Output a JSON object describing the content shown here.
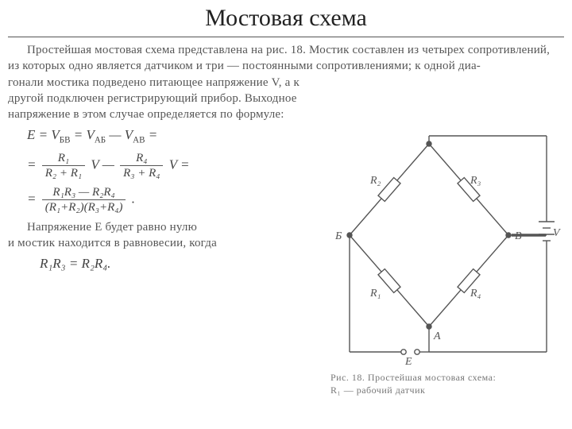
{
  "title": "Мостовая схема",
  "para1_full": "Простейшая мостовая схема представлена на рис. 18. Мостик составлен из четырех сопротивлений, из которых одно является датчиком и три — постоянными сопротивлениями; к одной диа-",
  "para1_wrap": "гонали мостика подведено питающее напряжение V, а к другой подключен регистрирующий прибор. Выходное напряжение в этом случае опреде­ляется по формуле:",
  "eq1_lhs": "E = V",
  "eq1_sub1": "БВ",
  "eq1_mid1": " = V",
  "eq1_sub2": "АБ",
  "eq1_mid2": " — V",
  "eq1_sub3": "АВ",
  "eq1_end": " =",
  "eq2_prefix": "= ",
  "eq2_frac1_num": "R₁",
  "eq2_frac1_den": "R₂ + R₁",
  "eq2_mid": " V — ",
  "eq2_frac2_num": "R₄",
  "eq2_frac2_den": "R₃ + R₄",
  "eq2_suffix": " V =",
  "eq3_prefix": "= ",
  "eq3_num": "R₁R₃ — R₂R₄",
  "eq3_den": "(R₁+R₂)(R₃+R₄)",
  "eq3_suffix": " .",
  "para2_narrow": "Напряжение E будет равно нулю",
  "para2_wide": "и мостик находится в равновесии, когда",
  "eq4": "R₁R₃ = R₂R₄.",
  "caption_line1": "Рис. 18. Простейшая мостовая схема:",
  "caption_line2": "R₁ — рабочий датчик",
  "diagram": {
    "labels": {
      "R1": "R₁",
      "R2": "R₂",
      "R3": "R₃",
      "R4": "R₄",
      "A": "A",
      "B": "Б",
      "V_node": "В",
      "E": "E",
      "V": "V"
    },
    "colors": {
      "stroke": "#555555",
      "fill_bg": "#ffffff"
    },
    "stroke_width": 1.4
  }
}
